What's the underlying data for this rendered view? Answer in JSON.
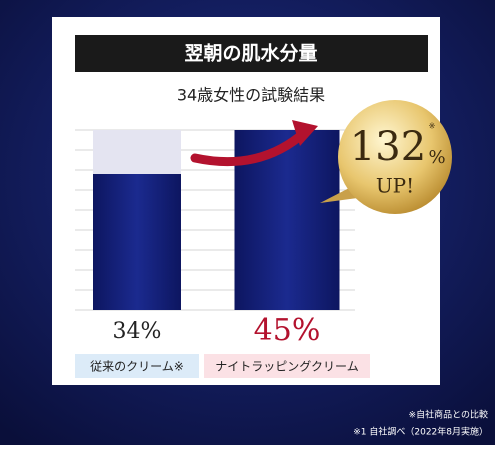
{
  "chart_data": {
    "type": "bar",
    "title": "翌朝の肌水分量",
    "subtitle": "34歳女性の試験結果",
    "categories": [
      "従来のクリーム※",
      "ナイトラッピングクリーム"
    ],
    "values": [
      34,
      45
    ],
    "value_labels": [
      "34%",
      "45%"
    ],
    "value_label_colors": [
      "#222222",
      "#b3122e"
    ],
    "color": "#1b2a8f",
    "track_color": "#e4e4f1",
    "ylim": [
      0,
      45
    ],
    "grid": true,
    "badge": {
      "number": "132",
      "unit": "%",
      "text": "UP!",
      "note": "※"
    },
    "footnotes": [
      "※自社商品との比較",
      "※1 自社調べ（2022年8月実施）"
    ]
  }
}
